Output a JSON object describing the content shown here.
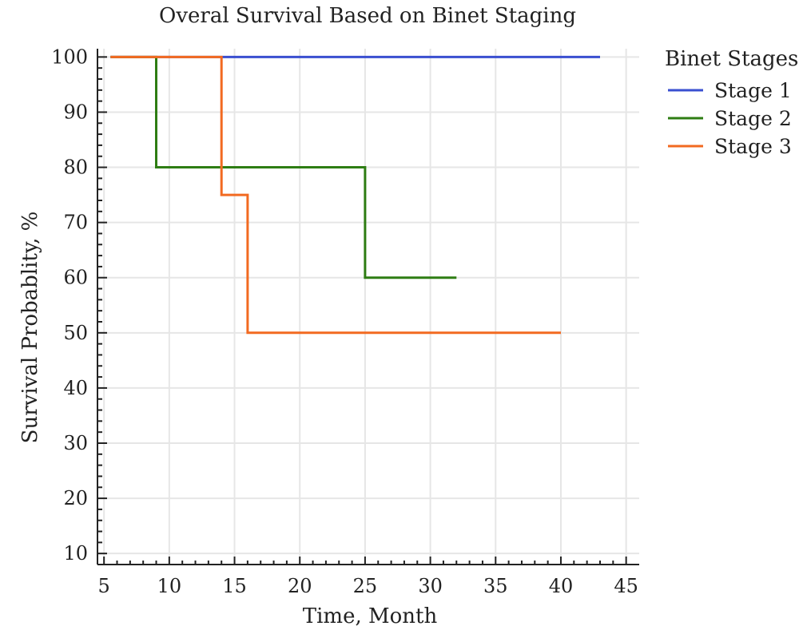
{
  "chart_data": {
    "type": "line",
    "step": true,
    "title": "Overal Survival Based on Binet Staging",
    "xlabel": "Time, Month",
    "ylabel": "Survival Probablity, %",
    "xlim": [
      4.5,
      46
    ],
    "ylim": [
      8,
      101.5
    ],
    "x_ticks": [
      5,
      10,
      15,
      20,
      25,
      30,
      35,
      40,
      45
    ],
    "y_ticks": [
      10,
      20,
      30,
      40,
      50,
      60,
      70,
      80,
      90,
      100
    ],
    "x_tick_labels": [
      "5",
      "10",
      "15",
      "20",
      "25",
      "30",
      "35",
      "40",
      "45"
    ],
    "y_tick_labels": [
      "10",
      "20",
      "30",
      "40",
      "50",
      "60",
      "70",
      "80",
      "90",
      "100"
    ],
    "grid": true,
    "legend": {
      "title": "Binet Stages",
      "placement": "outside-top-right"
    },
    "series": [
      {
        "name": "Stage 1",
        "color": "#3a4fd0",
        "points": [
          [
            5.5,
            100
          ],
          [
            43,
            100
          ]
        ]
      },
      {
        "name": "Stage 2",
        "color": "#2e7d13",
        "points": [
          [
            5.5,
            100
          ],
          [
            9,
            100
          ],
          [
            9,
            80
          ],
          [
            25,
            80
          ],
          [
            25,
            60
          ],
          [
            32,
            60
          ]
        ]
      },
      {
        "name": "Stage 3",
        "color": "#f26a21",
        "points": [
          [
            5.5,
            100
          ],
          [
            14,
            100
          ],
          [
            14,
            75
          ],
          [
            16,
            75
          ],
          [
            16,
            50
          ],
          [
            40,
            50
          ]
        ]
      }
    ]
  }
}
